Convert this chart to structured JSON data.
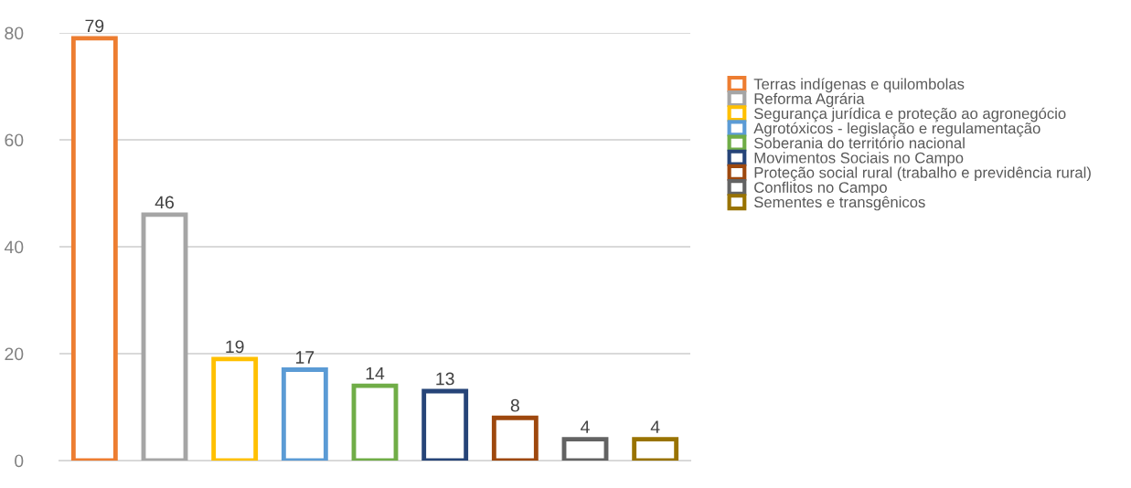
{
  "chart_data": {
    "type": "bar",
    "categories": [
      null,
      null,
      null,
      null,
      null,
      null,
      null,
      null,
      null
    ],
    "series": [
      {
        "name": "Terras indígenas e quilombolas",
        "color": "#ed7d31",
        "values": [
          79,
          null,
          null,
          null,
          null,
          null,
          null,
          null,
          null
        ]
      },
      {
        "name": "Reforma Agrária",
        "color": "#a5a5a5",
        "values": [
          null,
          46,
          null,
          null,
          null,
          null,
          null,
          null,
          null
        ]
      },
      {
        "name": "Segurança jurídica e proteção ao agronegócio",
        "color": "#ffc000",
        "values": [
          null,
          null,
          19,
          null,
          null,
          null,
          null,
          null,
          null
        ]
      },
      {
        "name": "Agrotóxicos - legislação e regulamentação",
        "color": "#5b9bd5",
        "values": [
          null,
          null,
          null,
          17,
          null,
          null,
          null,
          null,
          null
        ]
      },
      {
        "name": "Soberania do território nacional",
        "color": "#70ad47",
        "values": [
          null,
          null,
          null,
          null,
          14,
          null,
          null,
          null,
          null
        ]
      },
      {
        "name": "Movimentos Sociais no Campo",
        "color": "#264478",
        "values": [
          null,
          null,
          null,
          null,
          null,
          13,
          null,
          null,
          null
        ]
      },
      {
        "name": "Proteção social rural (trabalho e previdência rural)",
        "color": "#9e480e",
        "values": [
          null,
          null,
          null,
          null,
          null,
          null,
          8,
          null,
          null
        ]
      },
      {
        "name": "Conflitos no Campo",
        "color": "#636363",
        "values": [
          null,
          null,
          null,
          null,
          null,
          null,
          null,
          4,
          null
        ]
      },
      {
        "name": "Sementes e transgênicos",
        "color": "#997300",
        "values": [
          null,
          null,
          null,
          null,
          null,
          null,
          null,
          null,
          4
        ]
      }
    ],
    "ylim": [
      0,
      80
    ],
    "yticks": [
      0,
      20,
      40,
      60,
      80
    ],
    "grid": "y",
    "data_labels": true,
    "legend": "right"
  }
}
